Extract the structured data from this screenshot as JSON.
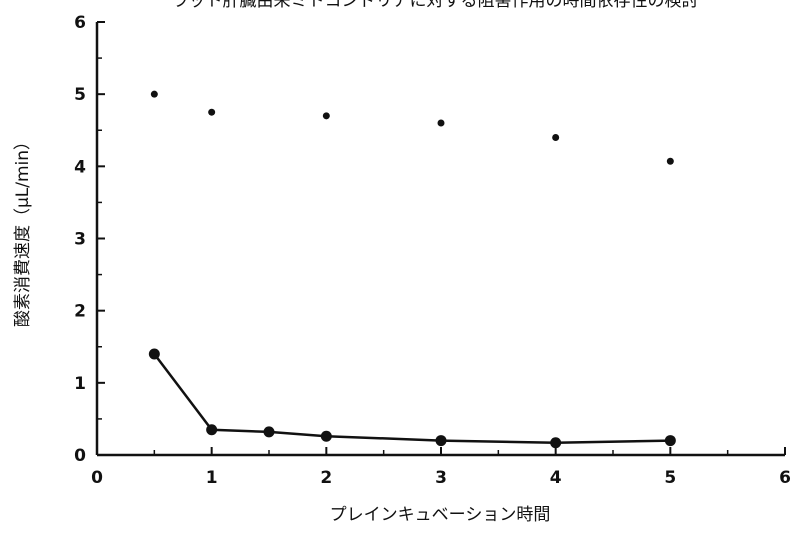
{
  "chart_data": {
    "type": "scatter",
    "title": "ラット肝臓由来ミトコンドリアに対する阻害作用の時間依存性の検討",
    "xlabel": "プレインキュベーション時間",
    "ylabel": "酸素消費速度（μL/min）",
    "xlim": [
      0,
      6
    ],
    "ylim": [
      0,
      6
    ],
    "x_ticks": [
      "0",
      "1",
      "2",
      "3",
      "4",
      "5",
      "6"
    ],
    "y_ticks": [
      "0",
      "1",
      "2",
      "3",
      "4",
      "5",
      "6"
    ],
    "grid": false,
    "legend": "none",
    "series": [
      {
        "style": "points",
        "color": "#111111",
        "x": [
          0.5,
          1,
          2,
          3,
          4,
          5
        ],
        "y": [
          5.0,
          4.75,
          4.7,
          4.6,
          4.4,
          4.07
        ]
      },
      {
        "style": "line-markers",
        "color": "#111111",
        "x": [
          0.5,
          1,
          1.5,
          2,
          3,
          4,
          5
        ],
        "y": [
          1.4,
          0.35,
          0.32,
          0.26,
          0.2,
          0.17,
          0.2
        ]
      }
    ]
  }
}
